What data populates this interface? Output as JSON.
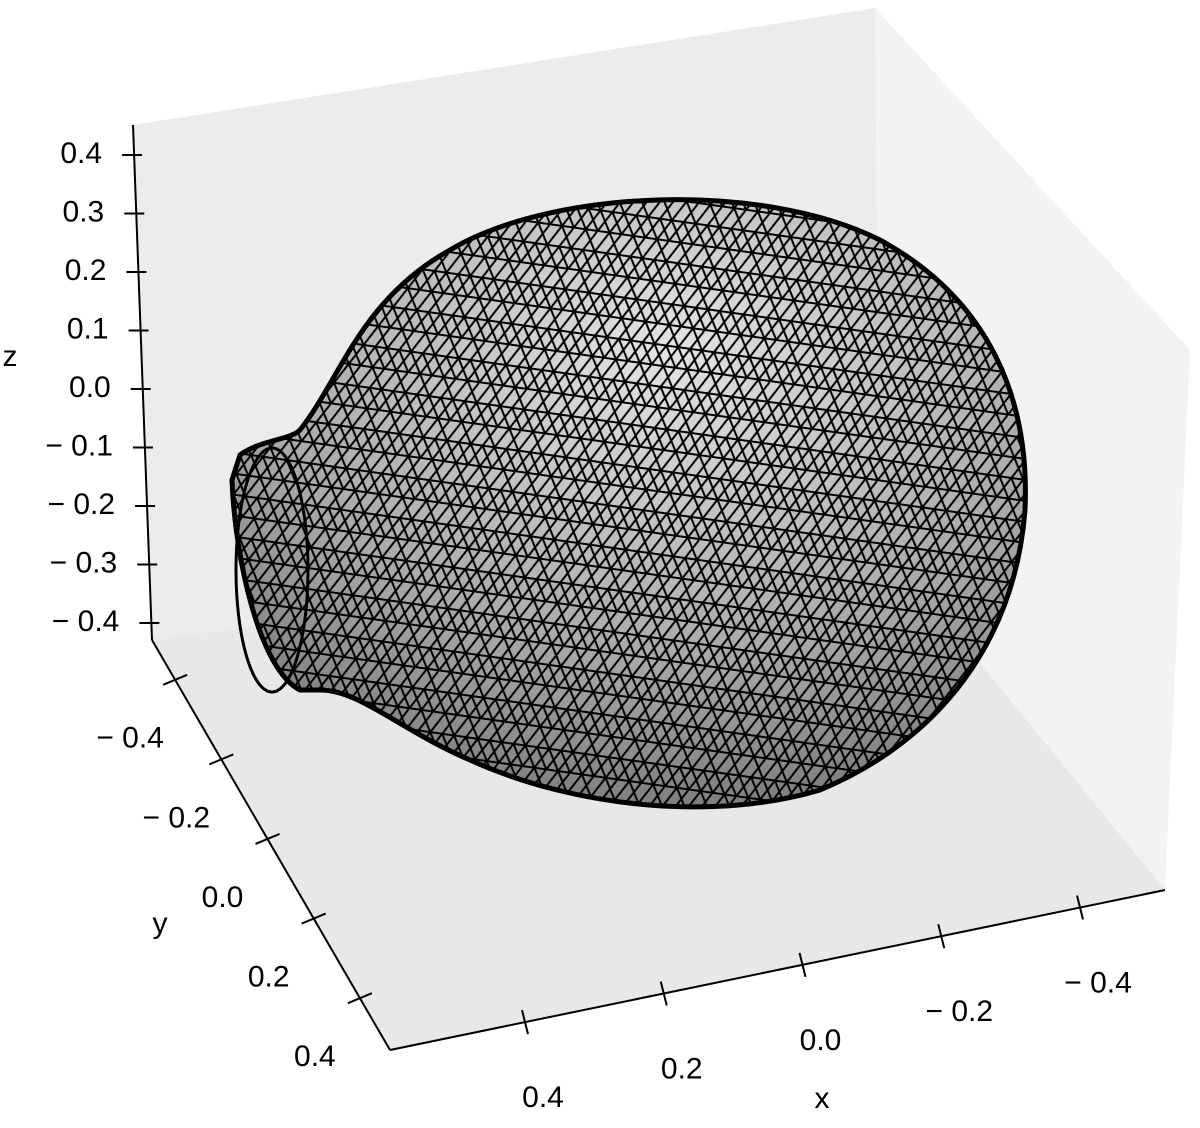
{
  "chart_data": {
    "type": "surface3d",
    "xlabel": "x",
    "ylabel": "y",
    "zlabel": "z",
    "xlim": [
      -0.5,
      0.5
    ],
    "ylim": [
      -0.5,
      0.5
    ],
    "zlim": [
      -0.45,
      0.45
    ],
    "xticks": [
      {
        "value": -0.4,
        "label": "− 0.4"
      },
      {
        "value": -0.2,
        "label": "− 0.2"
      },
      {
        "value": 0,
        "label": "0.0"
      },
      0.2,
      0.4
    ],
    "yticks": [
      {
        "value": -0.4,
        "label": "− 0.4"
      },
      {
        "value": -0.2,
        "label": "− 0.2"
      },
      {
        "value": 0,
        "label": "0.0"
      },
      0.2,
      0.4
    ],
    "zticks": [
      {
        "value": -0.4,
        "label": "− 0.4"
      },
      {
        "value": -0.3,
        "label": "− 0.3"
      },
      {
        "value": -0.2,
        "label": "− 0.2"
      },
      {
        "value": -0.1,
        "label": "− 0.1"
      },
      {
        "value": 0,
        "label": "0.0"
      },
      0.1,
      0.2,
      0.3,
      0.4
    ],
    "color": "#9a9a9a",
    "edgecolor": "#000000"
  }
}
